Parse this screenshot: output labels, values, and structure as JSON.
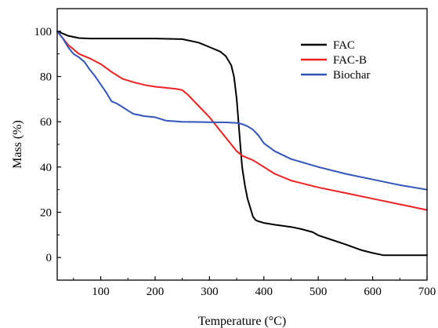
{
  "chart_data": {
    "type": "line",
    "title": "",
    "xlabel": "Temperature (°C)",
    "ylabel": "Mass (%)",
    "xlim": [
      20,
      700
    ],
    "ylim": [
      -10,
      110
    ],
    "xticks": [
      100,
      200,
      300,
      400,
      500,
      600,
      700
    ],
    "yticks": [
      0,
      20,
      40,
      60,
      80,
      100
    ],
    "xtick_labels": [
      "100",
      "200",
      "300",
      "400",
      "500",
      "600",
      "700"
    ],
    "ytick_labels": [
      "0",
      "20",
      "40",
      "60",
      "80",
      "100"
    ],
    "grid": false,
    "legend_position": "top-right",
    "series": [
      {
        "name": "FAC",
        "color": "#000000",
        "x": [
          20,
          40,
          60,
          80,
          100,
          150,
          200,
          250,
          280,
          300,
          320,
          330,
          340,
          345,
          350,
          355,
          360,
          365,
          370,
          375,
          380,
          385,
          390,
          400,
          420,
          450,
          470,
          490,
          500,
          520,
          550,
          580,
          600,
          620,
          650,
          700
        ],
        "y": [
          100,
          98,
          97,
          96.8,
          96.8,
          96.8,
          96.8,
          96.5,
          95,
          93,
          91,
          89,
          85,
          80,
          70,
          55,
          40,
          32,
          26,
          22,
          18,
          16.5,
          16,
          15.3,
          14.5,
          13.5,
          12.5,
          11.2,
          9.8,
          8.2,
          5.8,
          3.2,
          2,
          1,
          1,
          1
        ]
      },
      {
        "name": "FAC-B",
        "color": "#ee2222",
        "x": [
          20,
          40,
          60,
          80,
          100,
          120,
          140,
          160,
          180,
          200,
          220,
          240,
          250,
          260,
          280,
          300,
          320,
          340,
          350,
          360,
          380,
          400,
          420,
          450,
          500,
          550,
          600,
          650,
          700
        ],
        "y": [
          100,
          94,
          90,
          88,
          85.5,
          82,
          79,
          77.5,
          76.3,
          75.5,
          75,
          74.5,
          74,
          72,
          67,
          62,
          56,
          50,
          47,
          45,
          43,
          40,
          37,
          34,
          31,
          28.5,
          26,
          23.5,
          21
        ]
      },
      {
        "name": "Biochar",
        "color": "#3355bb",
        "x": [
          20,
          30,
          40,
          50,
          60,
          70,
          80,
          90,
          100,
          110,
          120,
          130,
          140,
          150,
          160,
          180,
          200,
          220,
          250,
          300,
          330,
          350,
          360,
          370,
          380,
          390,
          400,
          420,
          450,
          500,
          550,
          600,
          650,
          700
        ],
        "y": [
          100,
          97,
          93,
          90,
          88.5,
          86.5,
          83,
          80,
          76.5,
          73,
          69,
          68,
          66.5,
          65,
          63.5,
          62.5,
          62,
          60.5,
          60,
          59.8,
          59.7,
          59.5,
          59,
          58,
          56.5,
          54,
          50.5,
          47,
          43.5,
          40,
          37,
          34.5,
          32,
          30
        ]
      }
    ]
  }
}
